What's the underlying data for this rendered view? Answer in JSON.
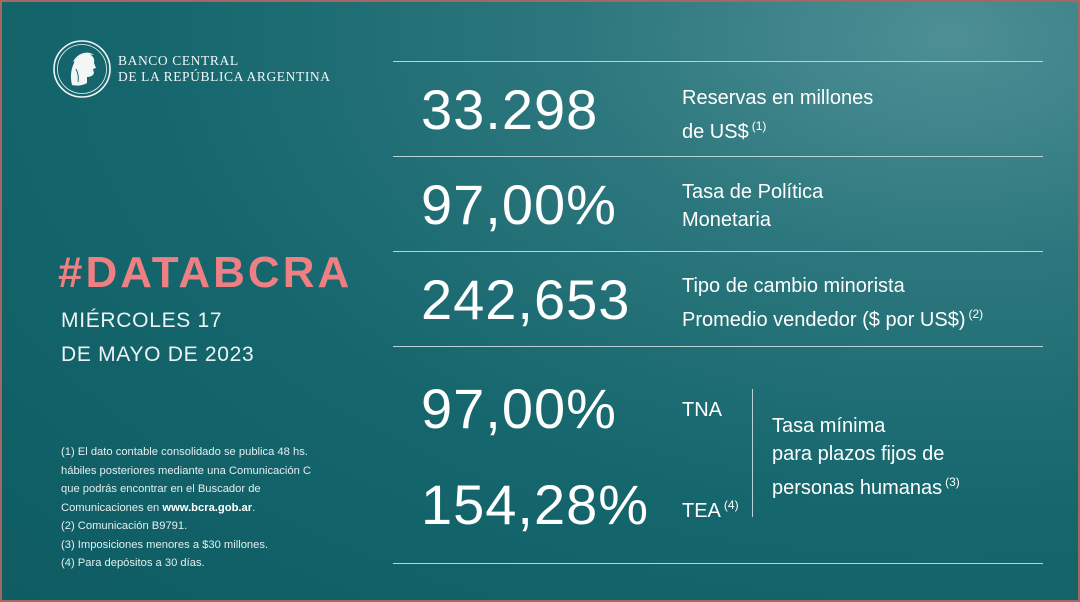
{
  "logo": {
    "line1": "BANCO CENTRAL",
    "line2": "DE LA REPÚBLICA ARGENTINA",
    "icon": "effigy-seal-icon"
  },
  "hashtag": "#DATABCRA",
  "date": {
    "line1": "MIÉRCOLES 17",
    "line2": "DE MAYO DE 2023"
  },
  "notes": {
    "n1a": "(1) El dato contable consolidado se publica 48 hs.",
    "n1b": "hábiles posteriores mediante una Comunicación C",
    "n1c": "que podrás encontrar en el Buscador de",
    "n1d_prefix": "Comunicaciones en ",
    "n1d_link": "www.bcra.gob.ar",
    "n1d_suffix": ".",
    "n2": "(2) Comunicación B9791.",
    "n3": "(3) Imposiciones menores a $30 millones.",
    "n4": "(4) Para depósitos a 30 días."
  },
  "reserves": {
    "value": "33.298",
    "label1": "Reservas en millones",
    "label2": "de US$",
    "note": "(1)"
  },
  "policy_rate": {
    "value": "97,00%",
    "label1": "Tasa de Política",
    "label2": "Monetaria"
  },
  "exchange_rate": {
    "value": "242,653",
    "label1": "Tipo de cambio minorista",
    "label2": "Promedio vendedor ($ por US$)",
    "note": "(2)"
  },
  "fixed_term": {
    "tna_value": "97,00%",
    "tna_label": "TNA",
    "tea_value": "154,28%",
    "tea_label": "TEA",
    "tea_note": "(4)",
    "desc1": "Tasa mínima",
    "desc2": "para plazos fijos de",
    "desc3": "personas humanas",
    "desc_note": "(3)"
  },
  "colors": {
    "background": "#1f6f73",
    "accent": "#ee7f83",
    "border": "#a5685e"
  }
}
